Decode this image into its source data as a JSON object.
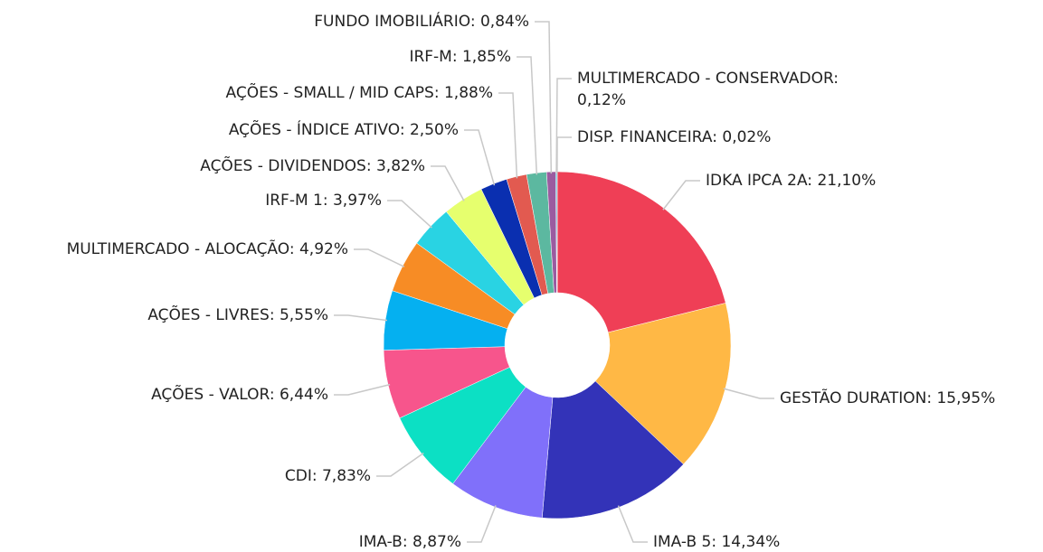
{
  "chart_data": {
    "type": "donut",
    "categories": [
      "IDKA IPCA 2A:",
      "GESTÃO DURATION:",
      "IMA-B 5:",
      "IMA-B:",
      "CDI:",
      "AÇÕES - VALOR:",
      "AÇÕES - LIVRES:",
      "MULTIMERCADO - ALOCAÇÃO:",
      "IRF-M 1:",
      "AÇÕES - DIVIDENDOS:",
      "AÇÕES - ÍNDICE ATIVO:",
      "AÇÕES - SMALL / MID CAPS:",
      "IRF-M:",
      "FUNDO IMOBILIÁRIO:",
      "MULTIMERCADO - CONSERVADOR:",
      "DISP. FINANCEIRA:"
    ],
    "values": [
      21.1,
      15.95,
      14.34,
      8.87,
      7.83,
      6.44,
      5.55,
      4.92,
      3.97,
      3.82,
      2.5,
      1.88,
      1.85,
      0.84,
      0.12,
      0.02
    ],
    "value_labels": [
      "21,10%",
      "15,95%",
      "14,34%",
      "8,87%",
      "7,83%",
      "6,44%",
      "5,55%",
      "4,92%",
      "3,97%",
      "3,82%",
      "2,50%",
      "1,88%",
      "1,85%",
      "0,84%",
      "0,12%",
      "0,02%"
    ],
    "colors": [
      "#ef3f56",
      "#ffb845",
      "#3333b8",
      "#8070fa",
      "#0ce0c4",
      "#f7558c",
      "#05b0f0",
      "#f78c25",
      "#29d3e3",
      "#e6ff6e",
      "#0a2fb0",
      "#e25a50",
      "#5cb8a0",
      "#9b5ba0",
      "#3fa0c0",
      "#6060a0"
    ]
  }
}
